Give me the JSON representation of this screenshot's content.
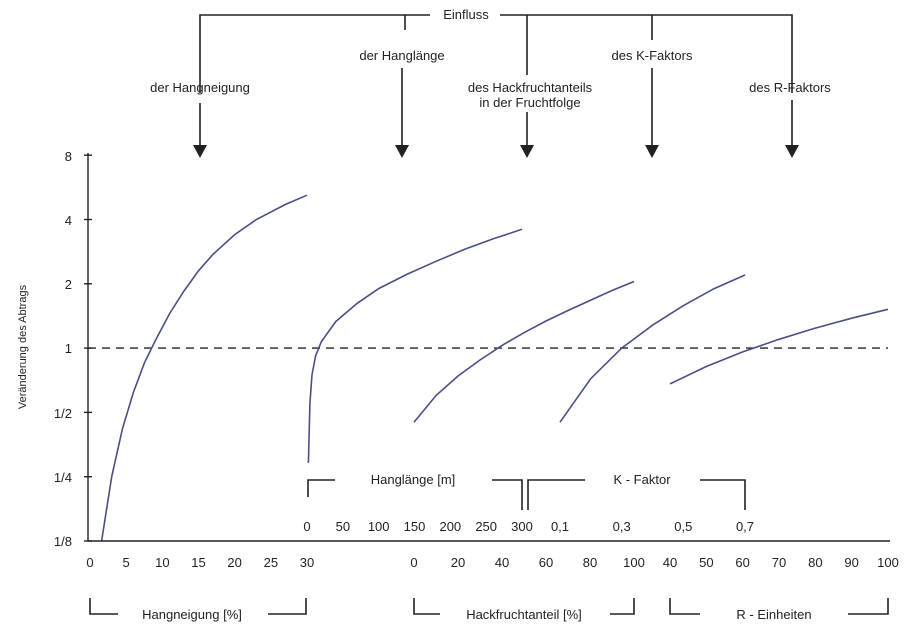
{
  "chart_data": {
    "type": "line",
    "title": "Einfluss",
    "ylabel": "Veränderung des Abtrags",
    "y_scale": "log2",
    "ylim": [
      0.125,
      5
    ],
    "yticks": [
      "1/8",
      "1/4",
      "1/2",
      "1",
      "2",
      "4",
      "8"
    ],
    "reference_line_y": 1,
    "factors": [
      {
        "id": "hangneigung",
        "label": "der Hangneigung"
      },
      {
        "id": "hanglaenge",
        "label": "der Hanglänge"
      },
      {
        "id": "hackfrucht",
        "label_lines": [
          "des Hackfruchtanteils",
          "in der Fruchtfolge"
        ]
      },
      {
        "id": "kfaktor",
        "label": "des K-Faktors"
      },
      {
        "id": "rfaktor",
        "label": "des R-Faktors"
      }
    ],
    "scales": [
      {
        "id": "hangneigung",
        "label": "Hangneigung [%]",
        "ticks": [
          "0",
          "5",
          "10",
          "15",
          "20",
          "25",
          "30"
        ]
      },
      {
        "id": "hanglaenge",
        "label": "Hanglänge [m]",
        "ticks": [
          "0",
          "50",
          "100",
          "150",
          "200",
          "250",
          "300"
        ]
      },
      {
        "id": "hackfrucht",
        "label": "Hackfruchtanteil [%]",
        "ticks": [
          "0",
          "20",
          "40",
          "60",
          "80",
          "100"
        ]
      },
      {
        "id": "kfaktor",
        "label": "K - Faktor",
        "ticks": [
          "0,1",
          "0,3",
          "0,5",
          "0,7"
        ]
      },
      {
        "id": "rfaktor",
        "label": "R - Einheiten",
        "ticks": [
          "40",
          "50",
          "60",
          "70",
          "80",
          "90",
          "100"
        ]
      }
    ],
    "series": [
      {
        "id": "hangneigung",
        "points": [
          [
            1.6,
            0.125
          ],
          [
            3,
            0.25
          ],
          [
            4.5,
            0.42
          ],
          [
            6,
            0.62
          ],
          [
            7.5,
            0.85
          ],
          [
            9,
            1.08
          ],
          [
            11,
            1.45
          ],
          [
            13,
            1.85
          ],
          [
            15,
            2.3
          ],
          [
            17,
            2.75
          ],
          [
            20,
            3.4
          ],
          [
            23,
            4.0
          ],
          [
            27,
            4.7
          ],
          [
            30,
            5.2
          ]
        ]
      },
      {
        "id": "hanglaenge",
        "points": [
          [
            2,
            0.29
          ],
          [
            4,
            0.55
          ],
          [
            7,
            0.75
          ],
          [
            12,
            0.92
          ],
          [
            20,
            1.07
          ],
          [
            40,
            1.33
          ],
          [
            70,
            1.62
          ],
          [
            100,
            1.9
          ],
          [
            140,
            2.22
          ],
          [
            180,
            2.55
          ],
          [
            220,
            2.9
          ],
          [
            260,
            3.25
          ],
          [
            300,
            3.6
          ]
        ]
      },
      {
        "id": "hackfrucht",
        "points": [
          [
            0,
            0.45
          ],
          [
            10,
            0.6
          ],
          [
            20,
            0.74
          ],
          [
            30,
            0.88
          ],
          [
            40,
            1.03
          ],
          [
            50,
            1.18
          ],
          [
            60,
            1.34
          ],
          [
            70,
            1.5
          ],
          [
            80,
            1.67
          ],
          [
            90,
            1.86
          ],
          [
            100,
            2.05
          ]
        ]
      },
      {
        "id": "kfaktor",
        "points": [
          [
            0.1,
            0.45
          ],
          [
            0.2,
            0.72
          ],
          [
            0.3,
            1.0
          ],
          [
            0.4,
            1.28
          ],
          [
            0.5,
            1.58
          ],
          [
            0.6,
            1.9
          ],
          [
            0.7,
            2.2
          ]
        ]
      },
      {
        "id": "rfaktor",
        "points": [
          [
            40,
            0.68
          ],
          [
            50,
            0.82
          ],
          [
            60,
            0.96
          ],
          [
            70,
            1.1
          ],
          [
            80,
            1.24
          ],
          [
            90,
            1.38
          ],
          [
            100,
            1.52
          ]
        ]
      }
    ]
  }
}
